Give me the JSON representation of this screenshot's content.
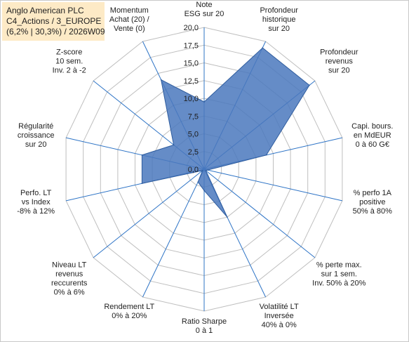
{
  "title": {
    "line1": "Anglo American PLC",
    "line2": "C4_Actions / 3_EUROPE",
    "line3": "(6,2% | 30,3%) / 2026W09"
  },
  "colors": {
    "fill": "#4a78bd",
    "stroke": "#2e5c9e",
    "grid": "#bfbfbf",
    "spokes": "#2e74c6"
  },
  "chart_data": {
    "type": "radar",
    "rmin": 0,
    "rmax": 20,
    "ticks": [
      "0,0",
      "2,5",
      "5,0",
      "7,5",
      "10,0",
      "12,5",
      "15,0",
      "17,5",
      "20,0"
    ],
    "axes": [
      {
        "label": [
          "Note",
          "ESG sur 20"
        ],
        "value": 9.5
      },
      {
        "label": [
          "Profondeur",
          "historique",
          "sur 20"
        ],
        "value": 19.0
      },
      {
        "label": [
          "Profondeur",
          "revenus",
          "sur 20"
        ],
        "value": 19.0
      },
      {
        "label": [
          "Capi. bours.",
          "en MdEUR",
          "0 à 60 G€"
        ],
        "value": 9.0
      },
      {
        "label": [
          "% perfo 1A",
          "positive",
          "50% à 80%"
        ],
        "value": 0.5
      },
      {
        "label": [
          "% perte max.",
          "sur 1 sem.",
          "Inv. 50% à 20%"
        ],
        "value": 0.3
      },
      {
        "label": [
          "Volatilité LT",
          "Inversée",
          "40% à 0%"
        ],
        "value": 7.5
      },
      {
        "label": [
          "Ratio Sharpe",
          "0 à 1"
        ],
        "value": 3.0
      },
      {
        "label": [
          "Rendement LT",
          "0% à 20%"
        ],
        "value": 2.0
      },
      {
        "label": [
          "Niveau LT",
          "revenus",
          "reccurents",
          "0% à 6%"
        ],
        "value": 0.3
      },
      {
        "label": [
          "Perfo. LT",
          "vs Index",
          "-8% à 12%"
        ],
        "value": 9.0
      },
      {
        "label": [
          "Régularité",
          "croissance",
          "sur 20"
        ],
        "value": 9.0
      },
      {
        "label": [
          "Z-score",
          "10 sem.",
          "Inv. 2 à -2"
        ],
        "value": 5.5
      },
      {
        "label": [
          "Momentum",
          "Achat (20) /",
          "Vente (0)"
        ],
        "value": 14.0
      }
    ]
  }
}
